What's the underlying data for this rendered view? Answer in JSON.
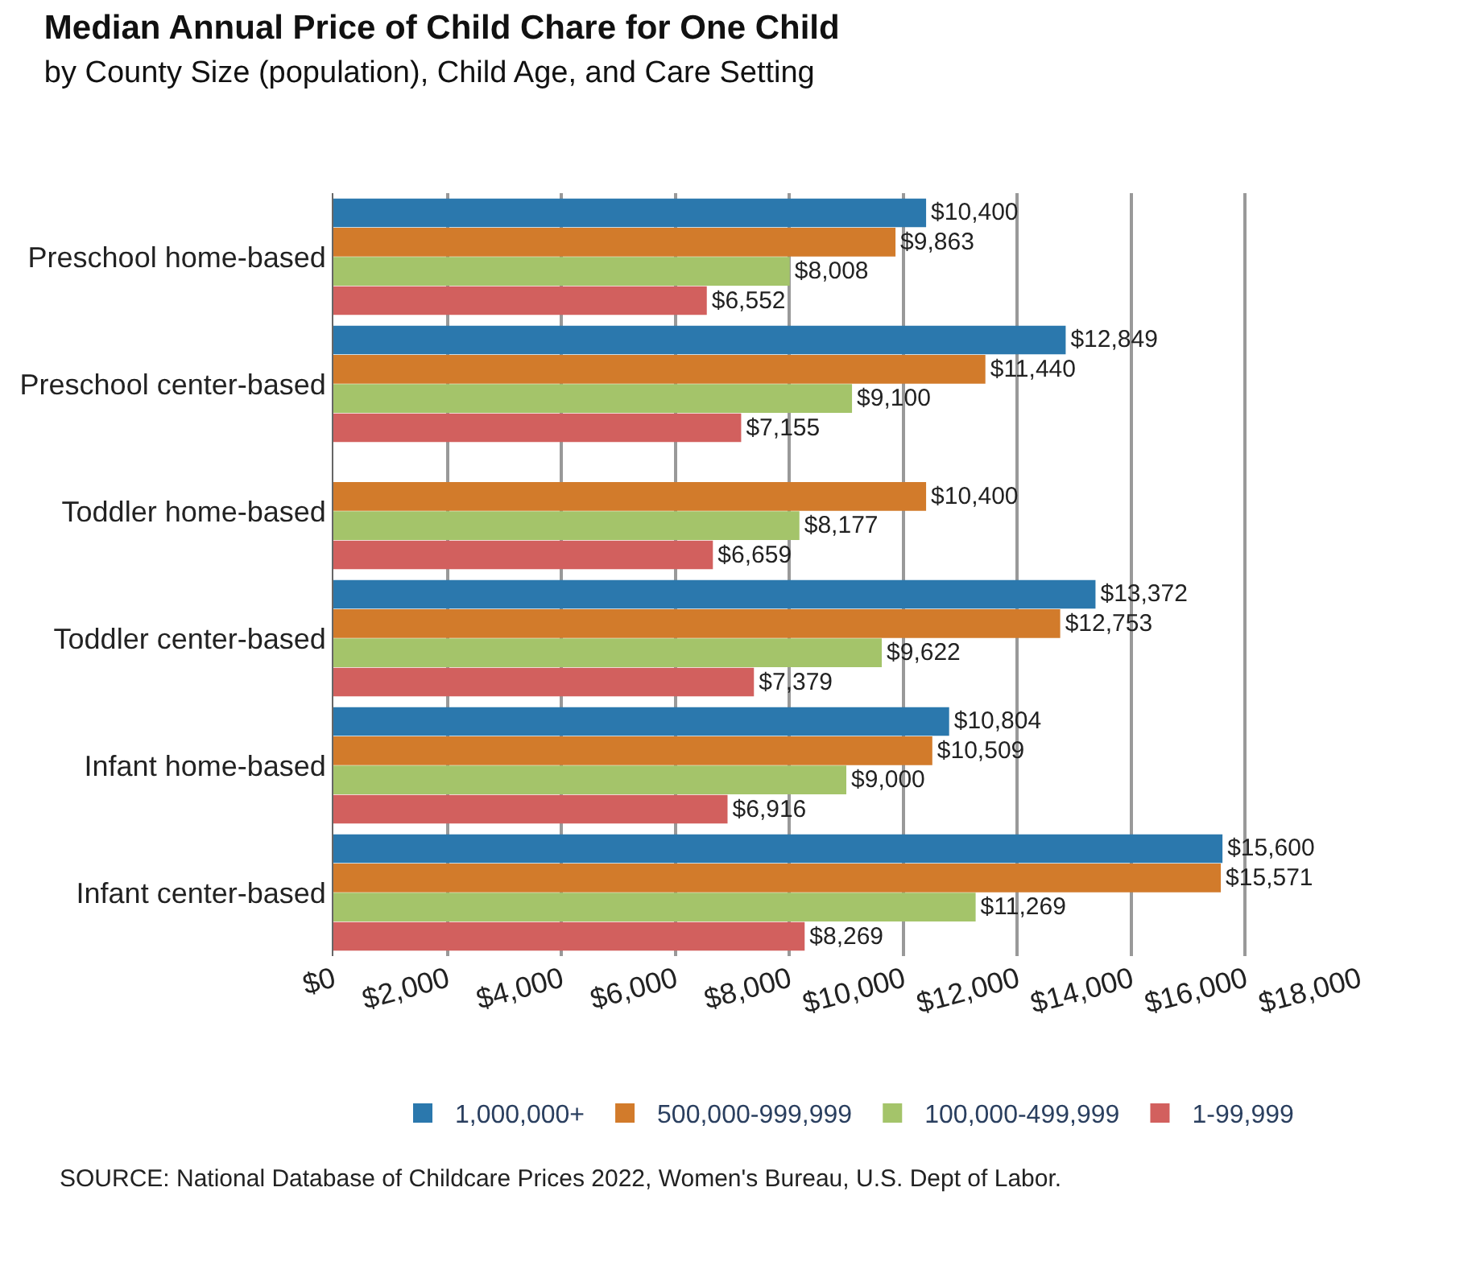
{
  "chart_data": {
    "type": "bar",
    "orientation": "horizontal",
    "title": "Median Annual Price of Child Chare for One Child",
    "subtitle": "by County Size (population), Child Age, and Care Setting",
    "categories": [
      "Preschool home-based",
      "Preschool center-based",
      "Toddler home-based",
      "Toddler center-based",
      "Infant home-based",
      "Infant center-based"
    ],
    "series": [
      {
        "name": "1,000,000+",
        "color": "#2b78ad",
        "values": [
          10400,
          12849,
          null,
          13372,
          10804,
          15600
        ],
        "value_labels": [
          "$10,400",
          "$12,849",
          null,
          "$13,372",
          "$10,804",
          "$15,600"
        ]
      },
      {
        "name": "500,000-999,999",
        "color": "#d27b2b",
        "values": [
          9863,
          11440,
          10400,
          12753,
          10509,
          15571
        ],
        "value_labels": [
          "$9,863",
          "$11,440",
          "$10,400",
          "$12,753",
          "$10,509",
          "$15,571"
        ]
      },
      {
        "name": "100,000-499,999",
        "color": "#a4c46a",
        "values": [
          8008,
          9100,
          8177,
          9622,
          9000,
          11269
        ],
        "value_labels": [
          "$8,008",
          "$9,100",
          "$8,177",
          "$9,622",
          "$9,000",
          "$11,269"
        ]
      },
      {
        "name": "1-99,999",
        "color": "#d2605e",
        "values": [
          6552,
          7155,
          6659,
          7379,
          6916,
          8269
        ],
        "value_labels": [
          "$6,552",
          "$7,155",
          "$6,659",
          "$7,379",
          "$6,916",
          "$8,269"
        ]
      }
    ],
    "xlim": [
      0,
      18000
    ],
    "xticks": [
      {
        "value": 0,
        "label": "$0"
      },
      {
        "value": 2000,
        "label": "$2,000"
      },
      {
        "value": 4000,
        "label": "$4,000"
      },
      {
        "value": 6000,
        "label": "$6,000"
      },
      {
        "value": 8000,
        "label": "$8,000"
      },
      {
        "value": 10000,
        "label": "$10,000"
      },
      {
        "value": 12000,
        "label": "$12,000"
      },
      {
        "value": 14000,
        "label": "$14,000"
      },
      {
        "value": 16000,
        "label": "$16,000"
      },
      {
        "value": 18000,
        "label": "$18,000"
      }
    ],
    "grid": "x",
    "legend": "bottom",
    "annotations": [
      "SOURCE: National Database of Childcare Prices 2022, Women's Bureau, U.S. Dept of Labor."
    ]
  }
}
